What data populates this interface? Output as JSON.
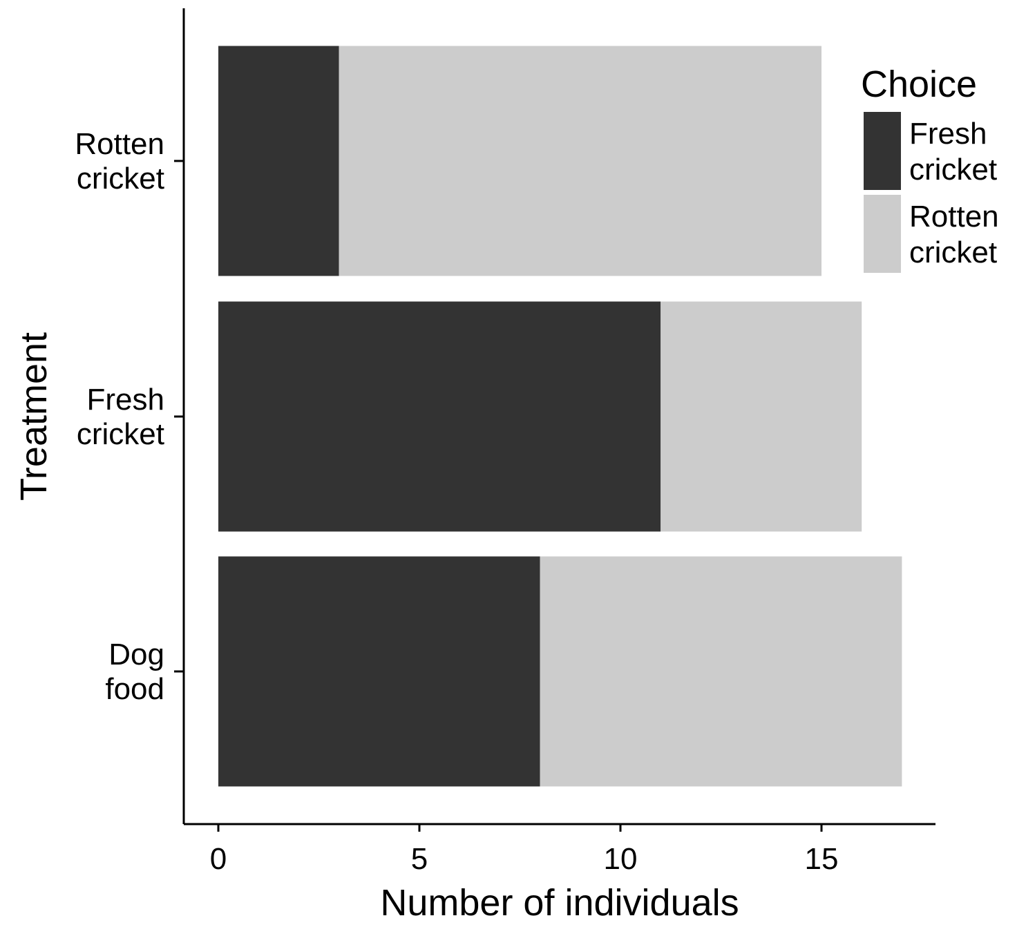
{
  "chart_data": {
    "type": "bar",
    "orientation": "horizontal",
    "stacked": true,
    "title": "",
    "xlabel": "Number of individuals",
    "ylabel": "Treatment",
    "xlim": [
      0,
      17.7
    ],
    "x_ticks": [
      0,
      5,
      10,
      15
    ],
    "categories": [
      [
        "Rotten",
        "cricket"
      ],
      [
        "Fresh",
        "cricket"
      ],
      [
        "Dog",
        "food"
      ]
    ],
    "series": [
      {
        "name": [
          "Fresh",
          "cricket"
        ],
        "color": "#333333",
        "values": [
          3,
          11,
          8
        ]
      },
      {
        "name": [
          "Rotten",
          "cricket"
        ],
        "color": "#cccccc",
        "values": [
          12,
          5,
          9
        ]
      }
    ],
    "legend": {
      "title": "Choice",
      "position": "top-right"
    },
    "grid": false
  }
}
